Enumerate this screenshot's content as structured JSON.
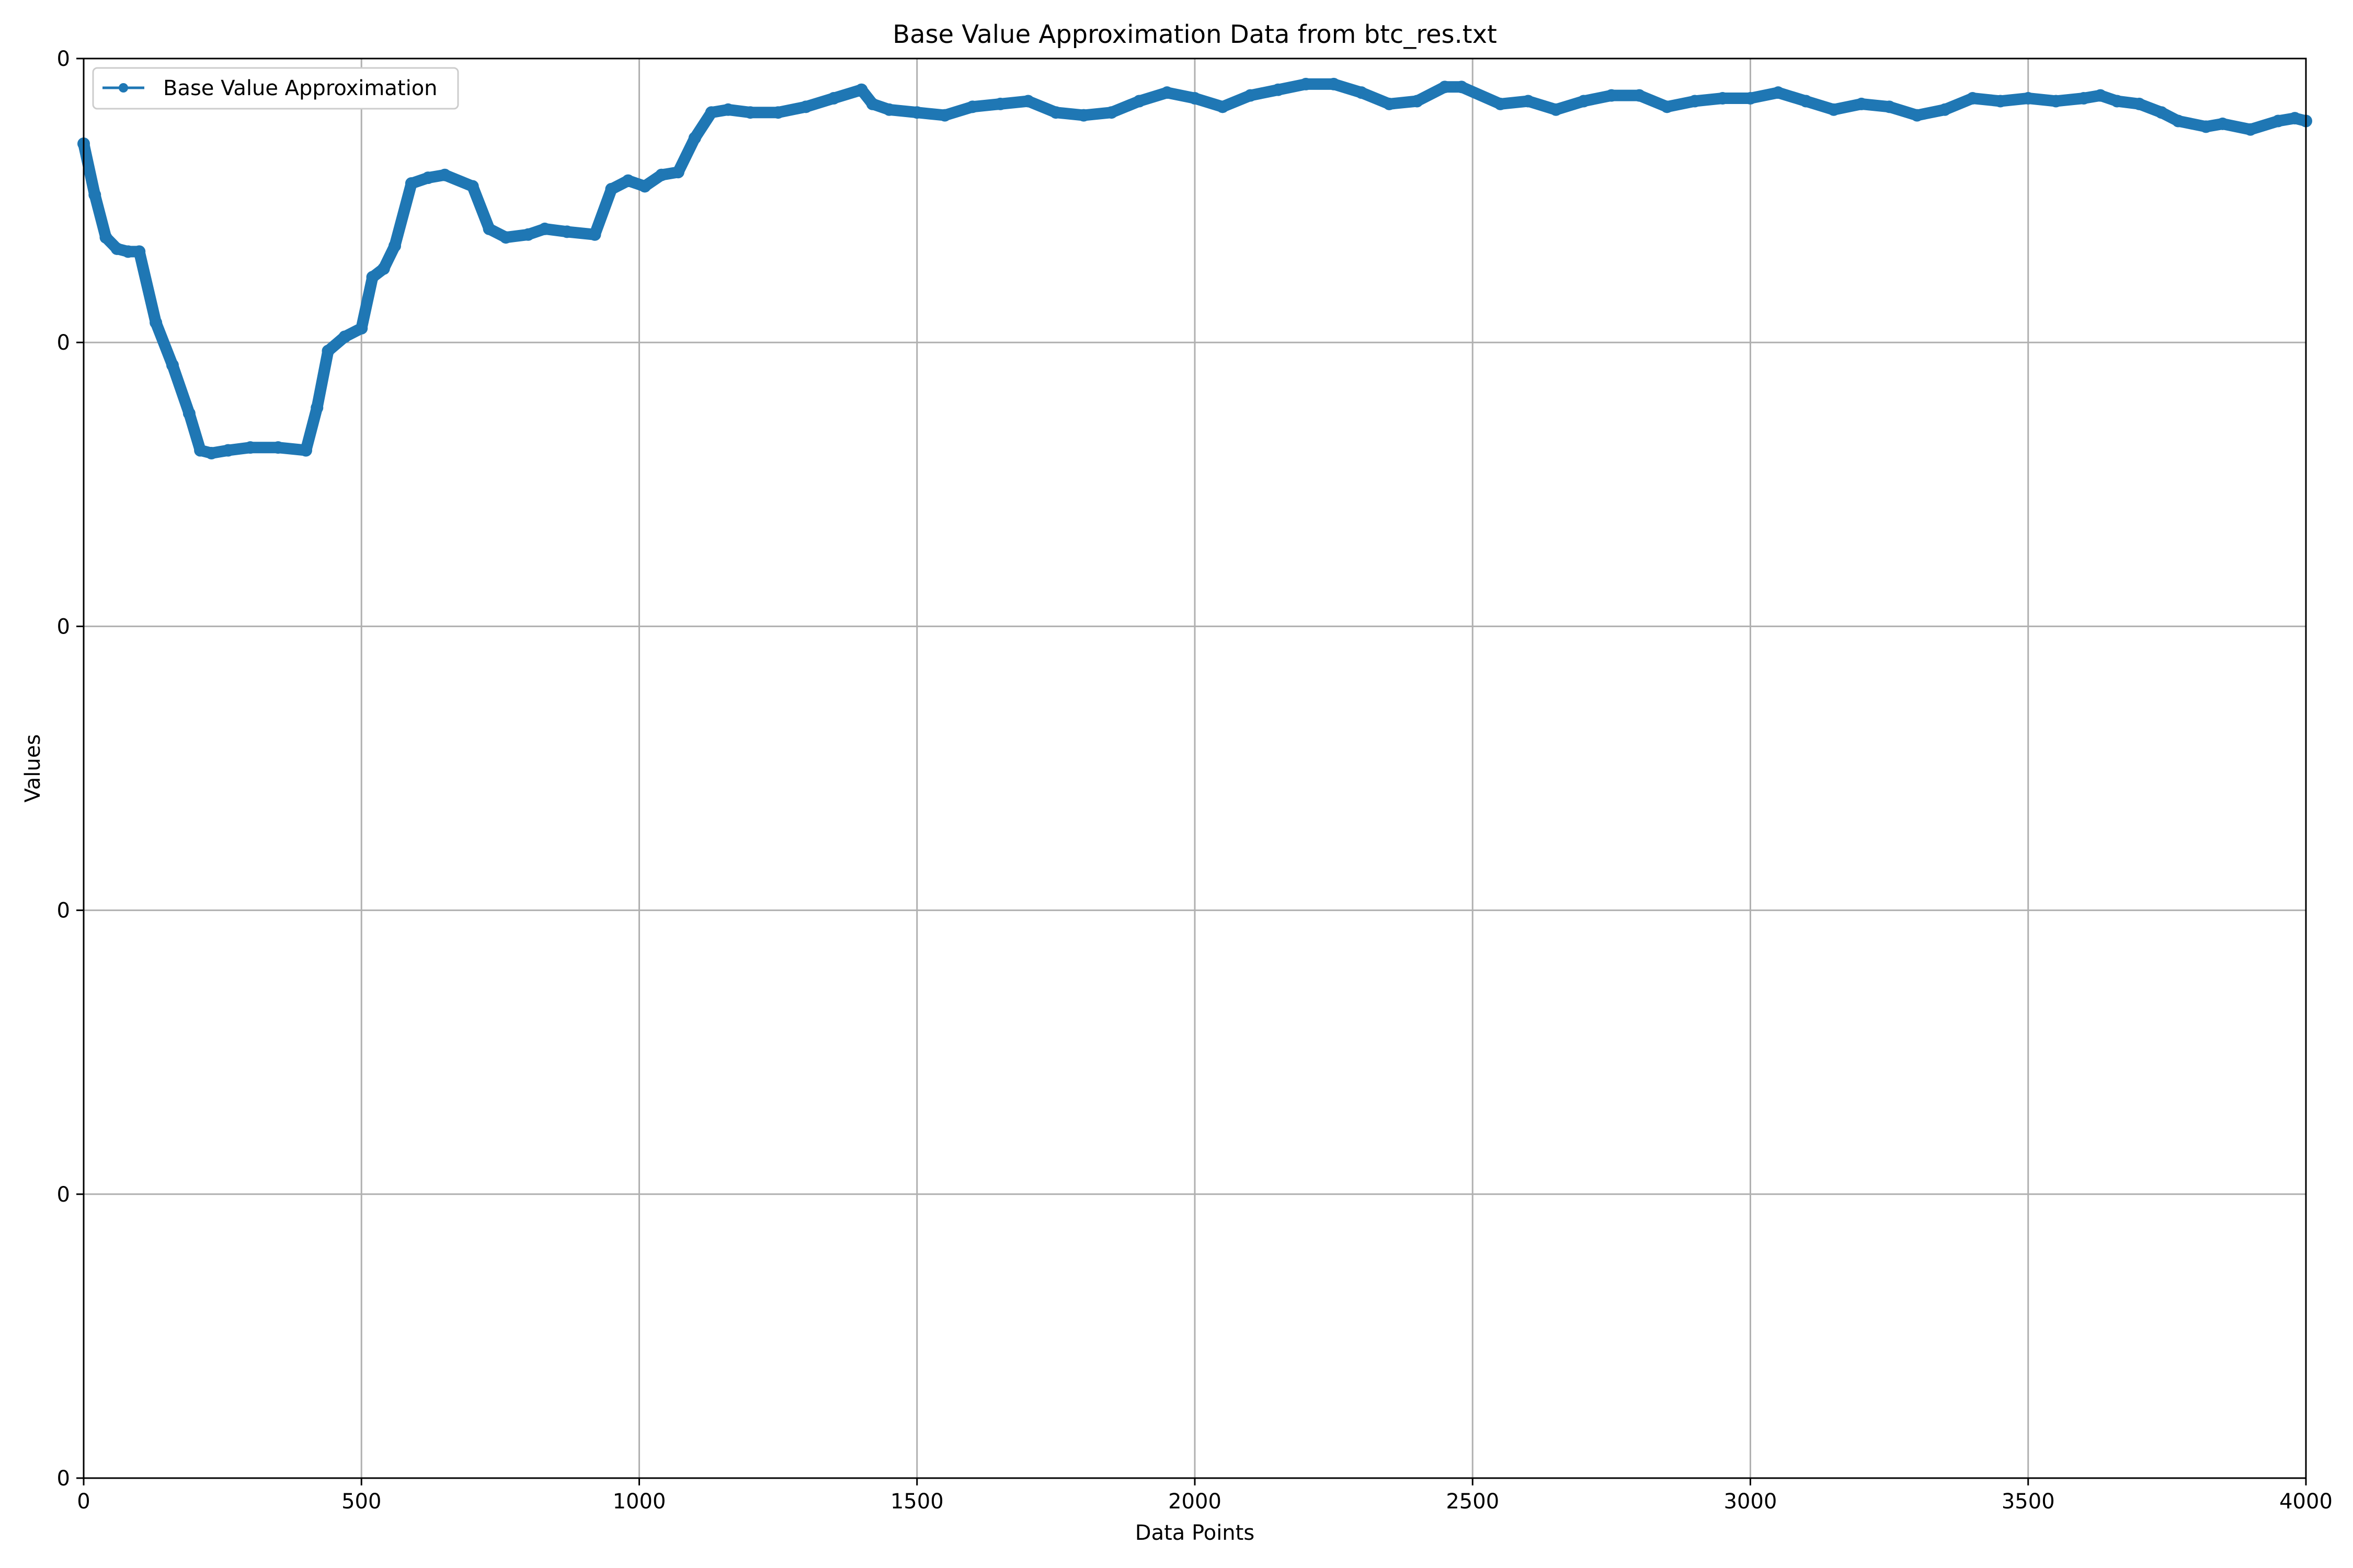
{
  "chart_data": {
    "type": "line",
    "title": "Base Value Approximation Data from btc_res.txt",
    "xlabel": "Data Points",
    "ylabel": "Values",
    "xlim": [
      0,
      4000
    ],
    "ylim": [
      0,
      5
    ],
    "x_ticks": [
      "0",
      "500",
      "1000",
      "1500",
      "2000",
      "2500",
      "3000",
      "3500",
      "4000"
    ],
    "y_ticks": [
      "0",
      "0",
      "0",
      "0",
      "0",
      "0"
    ],
    "grid": true,
    "legend_placement": "top-left",
    "color": "#1f77b4",
    "series": [
      {
        "name": "Base Value Approximation",
        "x": [
          0,
          20,
          40,
          60,
          80,
          100,
          130,
          160,
          190,
          210,
          230,
          260,
          300,
          350,
          400,
          420,
          440,
          470,
          500,
          520,
          540,
          560,
          590,
          620,
          650,
          700,
          730,
          760,
          800,
          830,
          870,
          920,
          950,
          980,
          1010,
          1040,
          1070,
          1100,
          1130,
          1160,
          1200,
          1250,
          1300,
          1350,
          1400,
          1420,
          1450,
          1500,
          1550,
          1600,
          1650,
          1700,
          1750,
          1800,
          1850,
          1900,
          1950,
          2000,
          2050,
          2100,
          2150,
          2200,
          2250,
          2300,
          2350,
          2400,
          2450,
          2480,
          2550,
          2600,
          2650,
          2700,
          2750,
          2800,
          2850,
          2900,
          2950,
          3000,
          3050,
          3100,
          3150,
          3200,
          3250,
          3300,
          3350,
          3400,
          3450,
          3500,
          3550,
          3600,
          3630,
          3660,
          3700,
          3740,
          3770,
          3820,
          3850,
          3900,
          3950,
          3980,
          4000
        ],
        "values": [
          4.7,
          4.52,
          4.37,
          4.33,
          4.32,
          4.32,
          4.07,
          3.92,
          3.75,
          3.62,
          3.61,
          3.62,
          3.63,
          3.63,
          3.62,
          3.77,
          3.97,
          4.02,
          4.05,
          4.23,
          4.26,
          4.34,
          4.56,
          4.58,
          4.59,
          4.55,
          4.4,
          4.37,
          4.38,
          4.4,
          4.39,
          4.38,
          4.54,
          4.57,
          4.55,
          4.59,
          4.6,
          4.72,
          4.81,
          4.82,
          4.81,
          4.81,
          4.83,
          4.86,
          4.89,
          4.84,
          4.82,
          4.81,
          4.8,
          4.83,
          4.84,
          4.85,
          4.81,
          4.8,
          4.81,
          4.85,
          4.88,
          4.86,
          4.83,
          4.87,
          4.89,
          4.91,
          4.91,
          4.88,
          4.84,
          4.85,
          4.9,
          4.9,
          4.84,
          4.85,
          4.82,
          4.85,
          4.87,
          4.87,
          4.83,
          4.85,
          4.86,
          4.86,
          4.88,
          4.85,
          4.82,
          4.84,
          4.83,
          4.8,
          4.82,
          4.86,
          4.85,
          4.86,
          4.85,
          4.86,
          4.87,
          4.85,
          4.84,
          4.81,
          4.78,
          4.76,
          4.77,
          4.75,
          4.78,
          4.79,
          4.78
        ]
      }
    ]
  }
}
